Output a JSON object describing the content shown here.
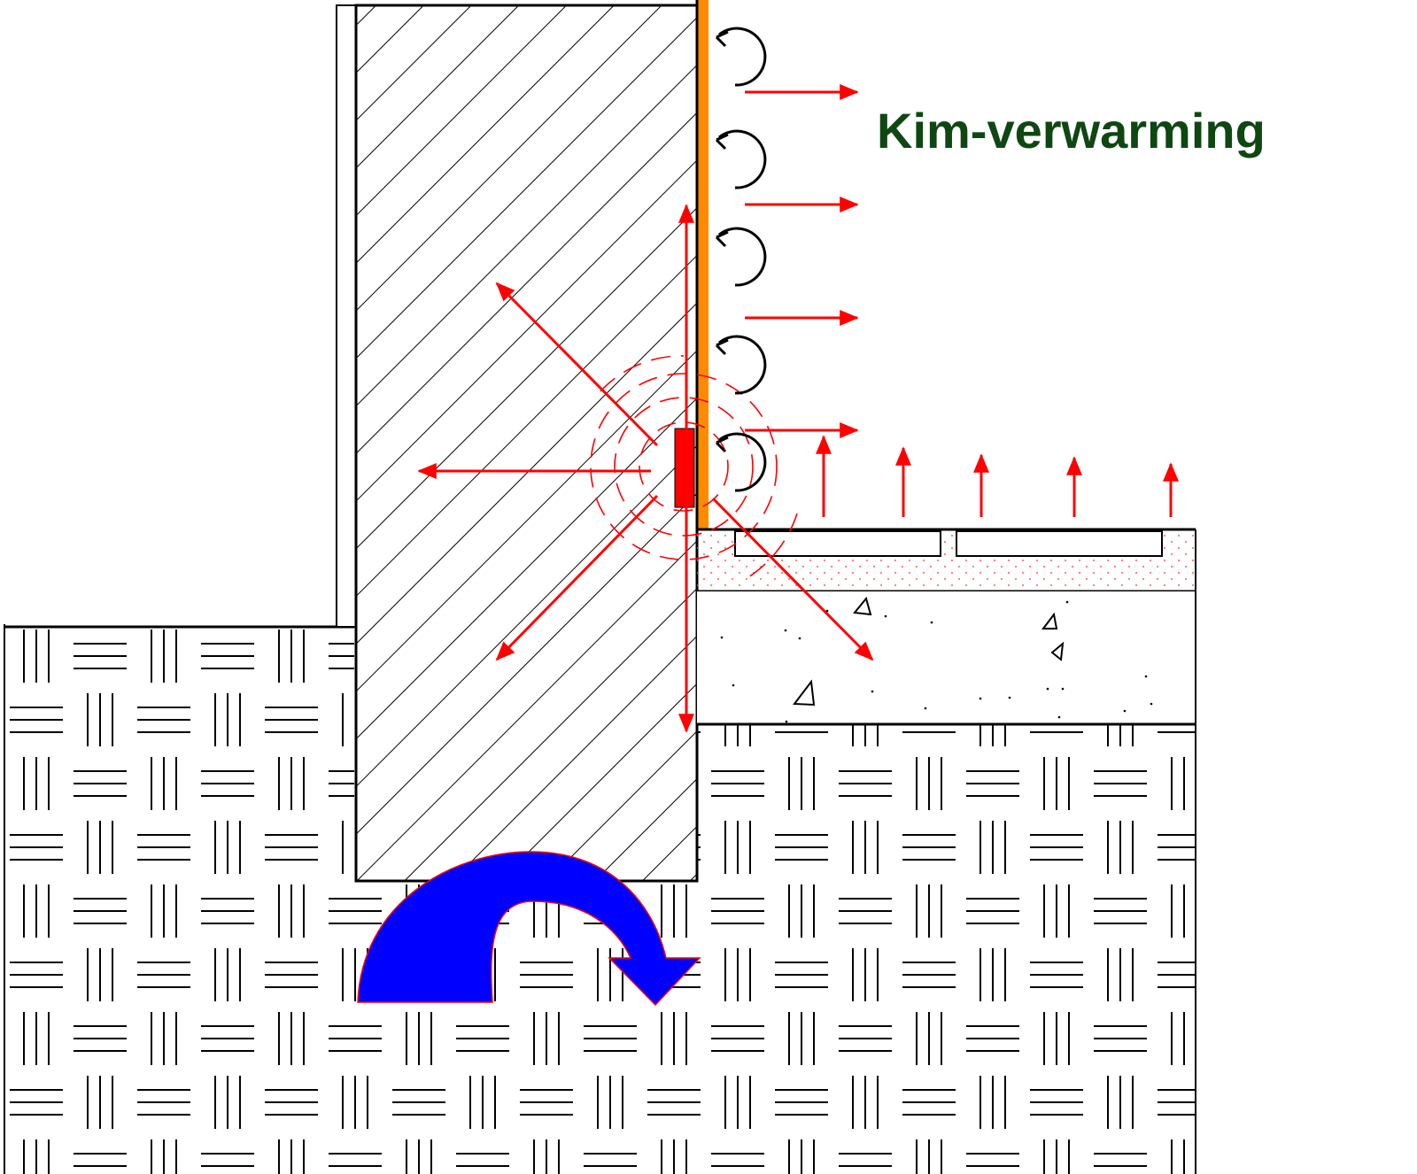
{
  "title": "Kim-verwarming",
  "colors": {
    "title": "#0f4712",
    "heat_arrows": "#ff0000",
    "skirting_heater": "#ff8a00",
    "heating_element": "#ff0000",
    "cold_flow_arrow": "#0000ff",
    "cold_flow_outline": "#ff0000",
    "lines": "#000000"
  },
  "icons": {
    "convection": "circular-arrow-icon",
    "heat_flow": "arrow-icon",
    "cold_bridge": "curved-arrow-icon"
  }
}
